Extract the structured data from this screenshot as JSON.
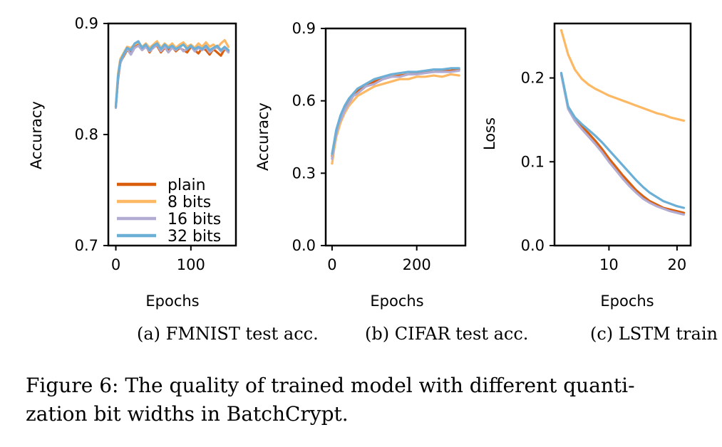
{
  "figure_caption": {
    "line1": "Figure 6: The quality of trained model with different quanti-",
    "line2": "zation bit widths in BatchCrypt."
  },
  "colors": {
    "plain": "#d95f0e",
    "8 bits": "#fdb863",
    "16 bits": "#b2abd2",
    "32 bits": "#6baed6"
  },
  "chart_data": [
    {
      "type": "line",
      "subcaption": "(a) FMNIST test acc.",
      "xlabel": "Epochs",
      "ylabel": "Accuracy",
      "xlim": [
        -10,
        160
      ],
      "ylim": [
        0.7,
        0.9
      ],
      "xticks": [
        0,
        100
      ],
      "xtick_labels": [
        "0",
        "100"
      ],
      "yticks": [
        0.7,
        0.8,
        0.9
      ],
      "ytick_labels": [
        "0.7",
        "0.8",
        "0.9"
      ],
      "legend": {
        "location": "lower-left",
        "entries": [
          "plain",
          "8 bits",
          "16 bits",
          "32 bits"
        ]
      },
      "series": [
        {
          "name": "plain",
          "x": [
            0,
            3,
            6,
            10,
            15,
            20,
            25,
            30,
            35,
            40,
            45,
            50,
            55,
            60,
            65,
            70,
            75,
            80,
            85,
            90,
            95,
            100,
            105,
            110,
            115,
            120,
            125,
            130,
            135,
            140,
            145,
            150
          ],
          "y": [
            0.825,
            0.85,
            0.865,
            0.87,
            0.876,
            0.874,
            0.879,
            0.881,
            0.877,
            0.88,
            0.874,
            0.879,
            0.88,
            0.874,
            0.878,
            0.876,
            0.879,
            0.875,
            0.878,
            0.876,
            0.874,
            0.879,
            0.876,
            0.873,
            0.878,
            0.876,
            0.872,
            0.877,
            0.874,
            0.871,
            0.877,
            0.875
          ]
        },
        {
          "name": "8 bits",
          "x": [
            0,
            3,
            6,
            10,
            15,
            20,
            25,
            30,
            35,
            40,
            45,
            50,
            55,
            60,
            65,
            70,
            75,
            80,
            85,
            90,
            95,
            100,
            105,
            110,
            115,
            120,
            125,
            130,
            135,
            140,
            145,
            150
          ],
          "y": [
            0.826,
            0.855,
            0.868,
            0.873,
            0.879,
            0.878,
            0.881,
            0.883,
            0.879,
            0.882,
            0.878,
            0.881,
            0.884,
            0.878,
            0.882,
            0.879,
            0.882,
            0.878,
            0.881,
            0.883,
            0.879,
            0.881,
            0.878,
            0.882,
            0.879,
            0.883,
            0.879,
            0.881,
            0.878,
            0.882,
            0.885,
            0.879
          ]
        },
        {
          "name": "16 bits",
          "x": [
            0,
            3,
            6,
            10,
            15,
            20,
            25,
            30,
            35,
            40,
            45,
            50,
            55,
            60,
            65,
            70,
            75,
            80,
            85,
            90,
            95,
            100,
            105,
            110,
            115,
            120,
            125,
            130,
            135,
            140,
            145,
            150
          ],
          "y": [
            0.824,
            0.852,
            0.864,
            0.871,
            0.877,
            0.872,
            0.878,
            0.88,
            0.876,
            0.879,
            0.875,
            0.878,
            0.881,
            0.875,
            0.879,
            0.874,
            0.878,
            0.876,
            0.879,
            0.875,
            0.877,
            0.88,
            0.875,
            0.878,
            0.876,
            0.879,
            0.874,
            0.877,
            0.879,
            0.875,
            0.878,
            0.874
          ]
        },
        {
          "name": "32 bits",
          "x": [
            0,
            3,
            6,
            10,
            15,
            20,
            25,
            30,
            35,
            40,
            45,
            50,
            55,
            60,
            65,
            70,
            75,
            80,
            85,
            90,
            95,
            100,
            105,
            110,
            115,
            120,
            125,
            130,
            135,
            140,
            145,
            150
          ],
          "y": [
            0.825,
            0.853,
            0.866,
            0.872,
            0.878,
            0.876,
            0.882,
            0.884,
            0.878,
            0.881,
            0.876,
            0.88,
            0.882,
            0.877,
            0.881,
            0.878,
            0.88,
            0.877,
            0.879,
            0.881,
            0.877,
            0.88,
            0.877,
            0.879,
            0.877,
            0.88,
            0.876,
            0.878,
            0.88,
            0.876,
            0.879,
            0.876
          ]
        }
      ]
    },
    {
      "type": "line",
      "subcaption": "(b) CIFAR test acc.",
      "xlabel": "Epochs",
      "ylabel": "Accuracy",
      "xlim": [
        -15,
        315
      ],
      "ylim": [
        0,
        0.9
      ],
      "xticks": [
        0,
        200
      ],
      "xtick_labels": [
        "0",
        "200"
      ],
      "yticks": [
        0,
        0.3,
        0.6,
        0.9
      ],
      "ytick_labels": [
        "0.0",
        "0.3",
        "0.6",
        "0.9"
      ],
      "series": [
        {
          "name": "plain",
          "x": [
            0,
            5,
            10,
            15,
            20,
            30,
            40,
            50,
            60,
            80,
            100,
            120,
            140,
            160,
            180,
            200,
            220,
            240,
            260,
            280,
            300
          ],
          "y": [
            0.37,
            0.42,
            0.47,
            0.5,
            0.53,
            0.57,
            0.6,
            0.62,
            0.64,
            0.66,
            0.68,
            0.69,
            0.7,
            0.705,
            0.71,
            0.715,
            0.72,
            0.72,
            0.725,
            0.725,
            0.73
          ]
        },
        {
          "name": "8 bits",
          "x": [
            0,
            5,
            10,
            15,
            20,
            30,
            40,
            50,
            60,
            80,
            100,
            120,
            140,
            160,
            180,
            200,
            220,
            240,
            260,
            280,
            300
          ],
          "y": [
            0.34,
            0.4,
            0.45,
            0.48,
            0.51,
            0.55,
            0.58,
            0.6,
            0.62,
            0.64,
            0.66,
            0.67,
            0.68,
            0.69,
            0.69,
            0.7,
            0.7,
            0.705,
            0.7,
            0.71,
            0.705
          ]
        },
        {
          "name": "16 bits",
          "x": [
            0,
            5,
            10,
            15,
            20,
            30,
            40,
            50,
            60,
            80,
            100,
            120,
            140,
            160,
            180,
            200,
            220,
            240,
            260,
            280,
            300
          ],
          "y": [
            0.36,
            0.42,
            0.46,
            0.5,
            0.52,
            0.56,
            0.59,
            0.62,
            0.63,
            0.66,
            0.67,
            0.69,
            0.7,
            0.7,
            0.71,
            0.71,
            0.715,
            0.72,
            0.72,
            0.72,
            0.725
          ]
        },
        {
          "name": "32 bits",
          "x": [
            0,
            5,
            10,
            15,
            20,
            30,
            40,
            50,
            60,
            80,
            100,
            120,
            140,
            160,
            180,
            200,
            220,
            240,
            260,
            280,
            300
          ],
          "y": [
            0.38,
            0.43,
            0.48,
            0.51,
            0.54,
            0.58,
            0.61,
            0.63,
            0.65,
            0.67,
            0.69,
            0.7,
            0.71,
            0.715,
            0.72,
            0.72,
            0.725,
            0.73,
            0.73,
            0.735,
            0.735
          ]
        }
      ]
    },
    {
      "type": "line",
      "subcaption": "(c) LSTM train loss",
      "xlabel": "Epochs",
      "ylabel": "Loss",
      "xlim": [
        2,
        22
      ],
      "ylim": [
        0,
        0.265
      ],
      "xticks": [
        10,
        20
      ],
      "xtick_labels": [
        "10",
        "20"
      ],
      "yticks": [
        0,
        0.1,
        0.2
      ],
      "ytick_labels": [
        "0.0",
        "0.1",
        "0.2"
      ],
      "series": [
        {
          "name": "plain",
          "x": [
            3,
            4,
            5,
            6,
            7,
            8,
            9,
            10,
            11,
            12,
            13,
            14,
            15,
            16,
            17,
            18,
            19,
            20,
            21
          ],
          "y": [
            0.205,
            0.165,
            0.152,
            0.142,
            0.134,
            0.125,
            0.115,
            0.104,
            0.094,
            0.084,
            0.075,
            0.066,
            0.059,
            0.053,
            0.049,
            0.045,
            0.043,
            0.041,
            0.039
          ]
        },
        {
          "name": "8 bits",
          "x": [
            3,
            4,
            5,
            6,
            7,
            8,
            9,
            10,
            11,
            12,
            13,
            14,
            15,
            16,
            17,
            18,
            19,
            20,
            21
          ],
          "y": [
            0.257,
            0.228,
            0.21,
            0.199,
            0.192,
            0.187,
            0.183,
            0.179,
            0.176,
            0.173,
            0.17,
            0.167,
            0.164,
            0.161,
            0.158,
            0.156,
            0.153,
            0.151,
            0.149
          ]
        },
        {
          "name": "16 bits",
          "x": [
            3,
            4,
            5,
            6,
            7,
            8,
            9,
            10,
            11,
            12,
            13,
            14,
            15,
            16,
            17,
            18,
            19,
            20,
            21
          ],
          "y": [
            0.204,
            0.163,
            0.149,
            0.139,
            0.13,
            0.121,
            0.111,
            0.1,
            0.09,
            0.08,
            0.071,
            0.063,
            0.056,
            0.051,
            0.047,
            0.044,
            0.041,
            0.039,
            0.037
          ]
        },
        {
          "name": "32 bits",
          "x": [
            3,
            4,
            5,
            6,
            7,
            8,
            9,
            10,
            11,
            12,
            13,
            14,
            15,
            16,
            17,
            18,
            19,
            20,
            21
          ],
          "y": [
            0.206,
            0.166,
            0.153,
            0.145,
            0.138,
            0.131,
            0.123,
            0.114,
            0.105,
            0.096,
            0.087,
            0.078,
            0.07,
            0.063,
            0.058,
            0.053,
            0.05,
            0.047,
            0.045
          ]
        }
      ]
    }
  ]
}
